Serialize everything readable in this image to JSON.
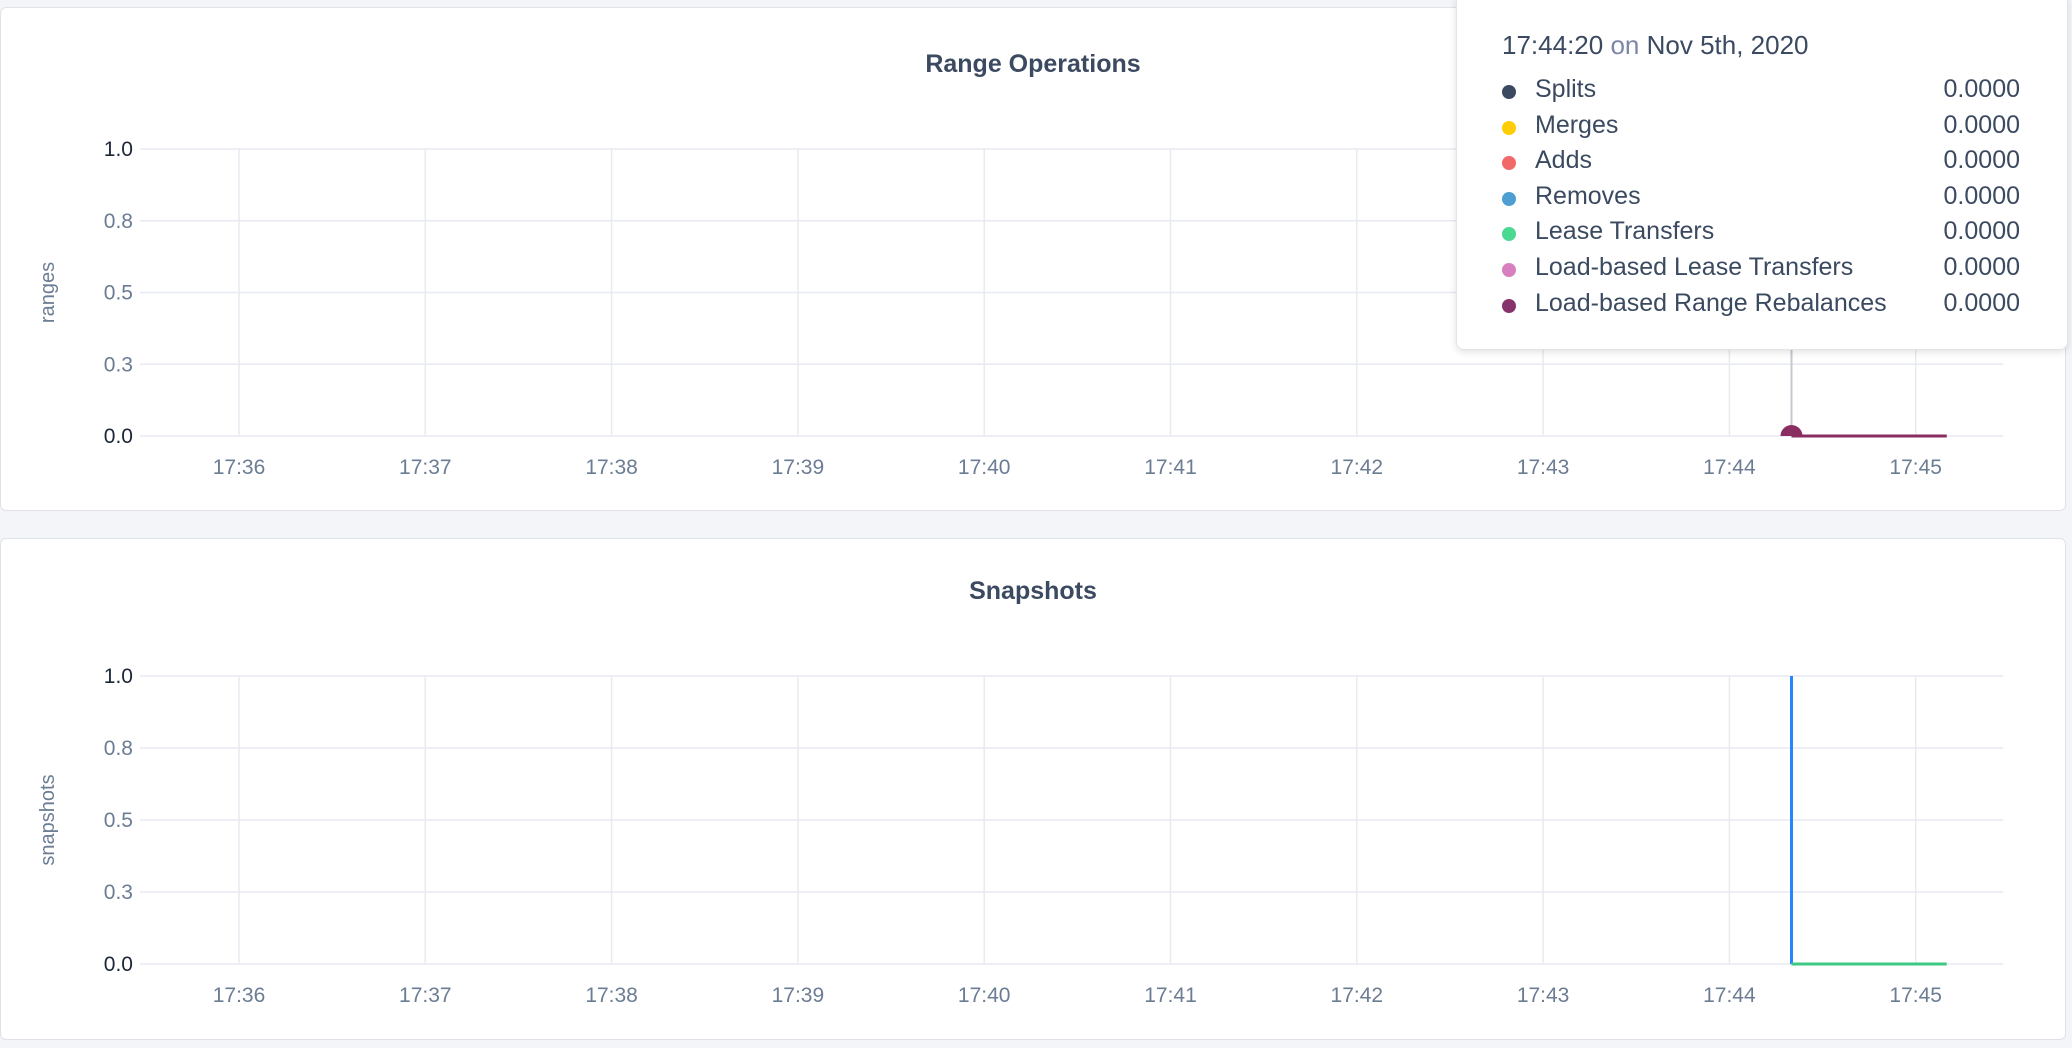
{
  "chart_data": [
    {
      "type": "line",
      "title": "Range Operations",
      "ylabel": "ranges",
      "xlabel": "",
      "ylim": [
        0,
        1
      ],
      "yticks": [
        "1.0",
        "0.8",
        "0.5",
        "0.3",
        "0.0"
      ],
      "xticks": [
        "17:36",
        "17:37",
        "17:38",
        "17:39",
        "17:40",
        "17:41",
        "17:42",
        "17:43",
        "17:44",
        "17:45"
      ],
      "grid": true,
      "series": [
        {
          "color": "#8a2e62",
          "points": [
            [
              "17:44:20",
              0
            ],
            [
              "17:45:10",
              0
            ]
          ]
        }
      ],
      "hover": {
        "x": "17:44:20",
        "marker_color": "#8a2e62"
      }
    },
    {
      "type": "line",
      "title": "Snapshots",
      "ylabel": "snapshots",
      "xlabel": "",
      "ylim": [
        0,
        1
      ],
      "yticks": [
        "1.0",
        "0.8",
        "0.5",
        "0.3",
        "0.0"
      ],
      "xticks": [
        "17:36",
        "17:37",
        "17:38",
        "17:39",
        "17:40",
        "17:41",
        "17:42",
        "17:43",
        "17:44",
        "17:45"
      ],
      "grid": true,
      "series": [
        {
          "color": "#2684ff",
          "points": [
            [
              "17:44:20",
              1
            ],
            [
              "17:44:20",
              0
            ]
          ]
        },
        {
          "color": "#3cca82",
          "points": [
            [
              "17:44:20",
              0
            ],
            [
              "17:45:10",
              0
            ]
          ]
        }
      ]
    }
  ],
  "tooltip": {
    "time": "17:44:20",
    "on": "on",
    "date": "Nov 5th, 2020",
    "rows": [
      {
        "label": "Splits",
        "value": "0.0000",
        "color": "#3b4a60"
      },
      {
        "label": "Merges",
        "value": "0.0000",
        "color": "#ffcd02"
      },
      {
        "label": "Adds",
        "value": "0.0000",
        "color": "#f16969"
      },
      {
        "label": "Removes",
        "value": "0.0000",
        "color": "#4e9fd1"
      },
      {
        "label": "Lease Transfers",
        "value": "0.0000",
        "color": "#49d990"
      },
      {
        "label": "Load-based Lease Transfers",
        "value": "0.0000",
        "color": "#d77fbf"
      },
      {
        "label": "Load-based Range Rebalances",
        "value": "0.0000",
        "color": "#87326d"
      }
    ]
  }
}
